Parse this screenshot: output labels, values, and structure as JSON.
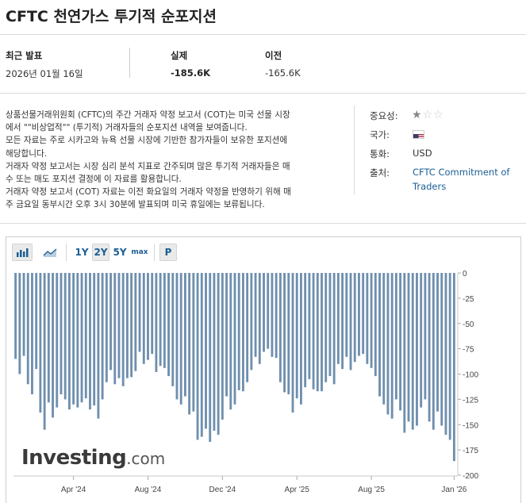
{
  "title": "CFTC 천연가스 투기적 순포지션",
  "stats": {
    "latest_label": "최근 발표",
    "latest_date": "2026년 01월 16일",
    "actual_label": "실제",
    "actual_value": "-185.6K",
    "previous_label": "이전",
    "previous_value": "-165.6K"
  },
  "description": [
    "상품선물거래위원회 (CFTC)의 주간 거래자 약정 보고서 (COT)는 미국 선물 시장",
    "에서 \"\"비상업적\"\" (투기적) 거래자들의 순포지션 내역을 보여줍니다.",
    "모든 자료는 주로 시카고와 뉴욕 선물 시장에 기반한 참가자들이 보유한 포지션에",
    "해당합니다.",
    "거래자 약정 보고서는 시장 심리 분석 지표로 간주되며 많은 투기적 거래자들은 매",
    "수 또는 매도 포지션 결정에 이 자료를 활용합니다.",
    "거래자 약정 보고서 (COT) 자료는 이전 화요일의 거래자 약정을 반영하기 위해 매",
    "주 금요일 동부시간 오후 3시 30분에 발표되며 미국 휴일에는 보류됩니다."
  ],
  "meta": {
    "importance_label": "중요성:",
    "importance_stars": 1,
    "importance_max": 3,
    "country_label": "국가:",
    "country_flag": "us-flag-icon",
    "currency_label": "통화:",
    "currency_value": "USD",
    "source_label": "출처:",
    "source_line1": "CFTC Commitment of",
    "source_line2": "Traders"
  },
  "toolbar": {
    "icons": [
      "bar-chart-icon",
      "area-chart-icon"
    ],
    "ranges": [
      "1Y",
      "2Y",
      "5Y",
      "max"
    ],
    "selected_range": "2Y",
    "extra": "P"
  },
  "logo": {
    "main": "Investing",
    "suffix": ".com"
  },
  "colors": {
    "bar": "#6f8fae",
    "link": "#1b5e94"
  },
  "chart_data": {
    "type": "bar",
    "ylim": [
      -200,
      0
    ],
    "y_ticks": [
      0,
      -25,
      -50,
      -75,
      -100,
      -125,
      -150,
      -175,
      -200
    ],
    "y_tick_labels": [
      "0",
      "-25",
      "-50",
      "-75",
      "-100",
      "-125",
      "-150",
      "-175",
      "-200"
    ],
    "x_tick_labels": [
      "Apr '24",
      "Aug '24",
      "Dec '24",
      "Apr '25",
      "Aug '25",
      "Jan '26"
    ],
    "x_tick_index": [
      14,
      32,
      50,
      68,
      86,
      106
    ],
    "values": [
      -85,
      -100,
      -82,
      -110,
      -120,
      -95,
      -138,
      -155,
      -128,
      -143,
      -133,
      -120,
      -125,
      -135,
      -130,
      -133,
      -128,
      -124,
      -135,
      -131,
      -144,
      -125,
      -108,
      -96,
      -110,
      -104,
      -112,
      -104,
      -103,
      -97,
      -78,
      -90,
      -86,
      -80,
      -98,
      -92,
      -94,
      -102,
      -112,
      -125,
      -130,
      -122,
      -140,
      -137,
      -165,
      -162,
      -154,
      -167,
      -156,
      -160,
      -145,
      -122,
      -135,
      -130,
      -116,
      -117,
      -108,
      -96,
      -83,
      -90,
      -78,
      -75,
      -83,
      -84,
      -108,
      -118,
      -120,
      -138,
      -124,
      -130,
      -113,
      -105,
      -115,
      -117,
      -117,
      -108,
      -102,
      -110,
      -90,
      -95,
      -83,
      -96,
      -88,
      -82,
      -80,
      -90,
      -94,
      -102,
      -122,
      -130,
      -140,
      -144,
      -125,
      -136,
      -158,
      -147,
      -155,
      -151,
      -133,
      -125,
      -147,
      -155,
      -137,
      -151,
      -160,
      -165,
      -186
    ]
  }
}
